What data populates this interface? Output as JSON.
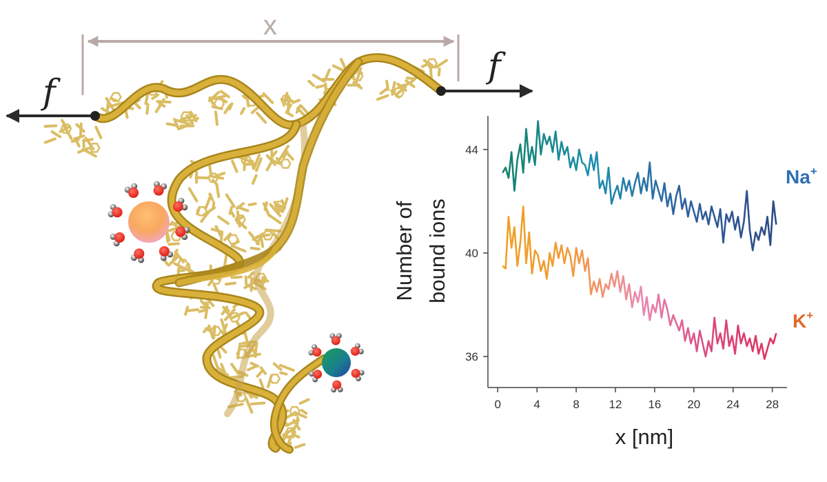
{
  "figure": {
    "force_label": "f",
    "distance_label": "x"
  },
  "colors": {
    "rna_backbone": "#c9a227",
    "rna_bases": "#d4b24a",
    "arrow_dark": "#2a2a2a",
    "arrow_gray": "#b9aaa6",
    "na_label": "#2f6fb5",
    "k_label": "#e0692a",
    "oxygen": "#e8281f",
    "hydrogen": "#3a3a3a"
  },
  "chart_data": {
    "type": "line",
    "xlabel": "x [nm]",
    "ylabel_line1": "Number of",
    "ylabel_line2": "bound ions",
    "xlim": [
      -1,
      29.5
    ],
    "ylim": [
      34.8,
      45.3
    ],
    "xticks": [
      0,
      4,
      8,
      12,
      16,
      20,
      24,
      28
    ],
    "yticks": [
      36,
      40,
      44
    ],
    "grid": false,
    "series": [
      {
        "name": "Na",
        "name_sup": "+",
        "gradient": [
          "#14806a",
          "#1f8fb0",
          "#2f5fa0",
          "#2d4a86"
        ],
        "x": [
          0.5,
          0.8,
          1.1,
          1.4,
          1.7,
          2.0,
          2.3,
          2.6,
          2.9,
          3.2,
          3.5,
          3.8,
          4.1,
          4.4,
          4.7,
          5.0,
          5.3,
          5.6,
          5.9,
          6.2,
          6.5,
          6.8,
          7.1,
          7.4,
          7.7,
          8.0,
          8.3,
          8.6,
          8.9,
          9.2,
          9.5,
          9.8,
          10.1,
          10.4,
          10.7,
          11.0,
          11.3,
          11.6,
          11.9,
          12.2,
          12.5,
          12.8,
          13.1,
          13.4,
          13.7,
          14.0,
          14.3,
          14.6,
          14.9,
          15.2,
          15.5,
          15.8,
          16.1,
          16.4,
          16.7,
          17.0,
          17.3,
          17.6,
          17.9,
          18.2,
          18.5,
          18.8,
          19.1,
          19.4,
          19.7,
          20.0,
          20.3,
          20.6,
          20.9,
          21.2,
          21.5,
          21.8,
          22.1,
          22.4,
          22.7,
          23.0,
          23.3,
          23.6,
          23.9,
          24.2,
          24.5,
          24.8,
          25.1,
          25.4,
          25.7,
          26.0,
          26.3,
          26.6,
          26.9,
          27.2,
          27.5,
          27.8,
          28.1,
          28.4
        ],
        "y": [
          43.1,
          43.3,
          42.9,
          43.9,
          42.4,
          43.6,
          44.2,
          43.1,
          44.8,
          43.5,
          44.1,
          43.4,
          45.1,
          43.8,
          44.6,
          44.2,
          44.5,
          43.9,
          44.7,
          43.6,
          44.3,
          43.8,
          44.1,
          43.3,
          43.7,
          43.2,
          44.0,
          43.5,
          43.4,
          43.0,
          43.8,
          43.2,
          43.9,
          42.5,
          42.8,
          42.3,
          43.3,
          41.9,
          42.3,
          42.6,
          42.1,
          42.9,
          42.4,
          42.8,
          42.2,
          42.7,
          43.1,
          42.3,
          42.9,
          42.4,
          43.5,
          42.1,
          42.8,
          42.4,
          42.0,
          42.7,
          41.8,
          42.3,
          41.5,
          42.2,
          42.6,
          41.7,
          42.1,
          41.4,
          42.0,
          41.6,
          41.2,
          41.9,
          41.3,
          41.6,
          41.1,
          41.8,
          41.4,
          41.0,
          41.7,
          40.4,
          41.5,
          41.2,
          41.6,
          40.9,
          41.4,
          40.6,
          41.2,
          42.4,
          40.9,
          40.1,
          40.8,
          40.5,
          41.0,
          40.7,
          41.4,
          40.3,
          42.0,
          41.1
        ]
      },
      {
        "name": "K",
        "name_sup": "+",
        "gradient": [
          "#f0a020",
          "#f29a3a",
          "#e98ab0",
          "#d94a80",
          "#e0305a"
        ],
        "x": [
          0.5,
          0.8,
          1.1,
          1.4,
          1.7,
          2.0,
          2.3,
          2.6,
          2.9,
          3.2,
          3.5,
          3.8,
          4.1,
          4.4,
          4.7,
          5.0,
          5.3,
          5.6,
          5.9,
          6.2,
          6.5,
          6.8,
          7.1,
          7.4,
          7.7,
          8.0,
          8.3,
          8.6,
          8.9,
          9.2,
          9.5,
          9.8,
          10.1,
          10.4,
          10.7,
          11.0,
          11.3,
          11.6,
          11.9,
          12.2,
          12.5,
          12.8,
          13.1,
          13.4,
          13.7,
          14.0,
          14.3,
          14.6,
          14.9,
          15.2,
          15.5,
          15.8,
          16.1,
          16.4,
          16.7,
          17.0,
          17.3,
          17.6,
          17.9,
          18.2,
          18.5,
          18.8,
          19.1,
          19.4,
          19.7,
          20.0,
          20.3,
          20.6,
          20.9,
          21.2,
          21.5,
          21.8,
          22.1,
          22.4,
          22.7,
          23.0,
          23.3,
          23.6,
          23.9,
          24.2,
          24.5,
          24.8,
          25.1,
          25.4,
          25.7,
          26.0,
          26.3,
          26.6,
          26.9,
          27.2,
          27.5,
          27.8,
          28.1,
          28.4
        ],
        "y": [
          39.5,
          39.4,
          41.4,
          40.2,
          41.0,
          39.5,
          40.4,
          41.8,
          39.6,
          40.8,
          39.2,
          40.1,
          39.9,
          39.3,
          39.7,
          39.0,
          40.0,
          39.5,
          40.4,
          39.8,
          40.3,
          39.6,
          40.2,
          39.9,
          39.1,
          40.2,
          39.6,
          40.1,
          39.3,
          39.8,
          38.4,
          38.9,
          38.5,
          39.0,
          38.3,
          38.8,
          38.6,
          39.2,
          38.7,
          39.3,
          38.5,
          39.1,
          38.2,
          38.8,
          37.9,
          38.5,
          38.1,
          38.7,
          37.6,
          38.3,
          37.4,
          38.0,
          37.7,
          38.4,
          37.5,
          38.2,
          37.8,
          37.2,
          37.6,
          37.3,
          37.0,
          37.4,
          36.6,
          37.1,
          36.5,
          36.9,
          36.2,
          37.0,
          36.5,
          36.0,
          36.6,
          36.2,
          37.5,
          36.5,
          36.9,
          36.3,
          37.4,
          36.4,
          36.8,
          36.1,
          37.2,
          36.5,
          36.9,
          36.4,
          36.7,
          36.2,
          36.8,
          36.1,
          36.5,
          35.9,
          36.3,
          36.7,
          36.5,
          36.9
        ]
      }
    ]
  }
}
